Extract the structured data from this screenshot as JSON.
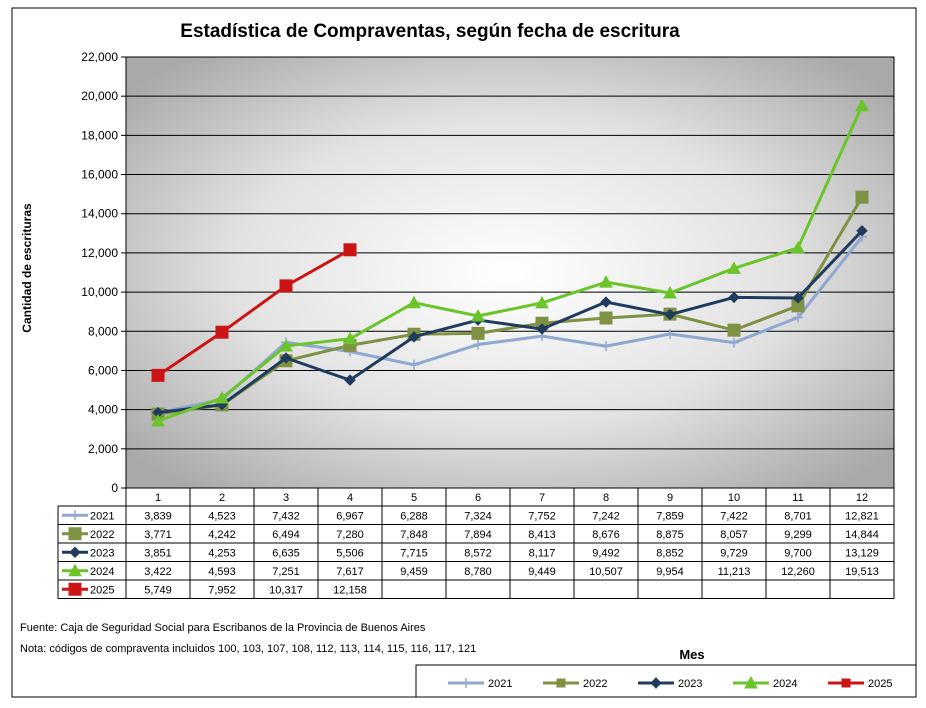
{
  "chart_data": {
    "type": "line",
    "title": "Estadística de Compraventas, según fecha de escritura",
    "xlabel": "Mes",
    "ylabel": "Cantidad de escrituras",
    "categories": [
      "1",
      "2",
      "3",
      "4",
      "5",
      "6",
      "7",
      "8",
      "9",
      "10",
      "11",
      "12"
    ],
    "ylim": [
      0,
      22000
    ],
    "yticks": [
      0,
      2000,
      4000,
      6000,
      8000,
      10000,
      12000,
      14000,
      16000,
      18000,
      20000,
      22000
    ],
    "ytick_labels": [
      "0",
      "2,000",
      "4,000",
      "6,000",
      "8,000",
      "10,000",
      "12,000",
      "14,000",
      "16,000",
      "18,000",
      "20,000",
      "22,000"
    ],
    "grid": true,
    "legend_position": "bottom-right",
    "series": [
      {
        "name": "2021",
        "color": "#8fa8d0",
        "marker": "cross",
        "values": [
          3839,
          4523,
          7432,
          6967,
          6288,
          7324,
          7752,
          7242,
          7859,
          7422,
          8701,
          12821
        ],
        "labels": [
          "3,839",
          "4,523",
          "7,432",
          "6,967",
          "6,288",
          "7,324",
          "7,752",
          "7,242",
          "7,859",
          "7,422",
          "8,701",
          "12,821"
        ]
      },
      {
        "name": "2022",
        "color": "#7f9244",
        "marker": "square",
        "values": [
          3771,
          4242,
          6494,
          7280,
          7848,
          7894,
          8413,
          8676,
          8875,
          8057,
          9299,
          14844
        ],
        "labels": [
          "3,771",
          "4,242",
          "6,494",
          "7,280",
          "7,848",
          "7,894",
          "8,413",
          "8,676",
          "8,875",
          "8,057",
          "9,299",
          "14,844"
        ]
      },
      {
        "name": "2023",
        "color": "#1f3b5e",
        "marker": "diamond",
        "values": [
          3851,
          4253,
          6635,
          5506,
          7715,
          8572,
          8117,
          9492,
          8852,
          9729,
          9700,
          13129
        ],
        "labels": [
          "3,851",
          "4,253",
          "6,635",
          "5,506",
          "7,715",
          "8,572",
          "8,117",
          "9,492",
          "8,852",
          "9,729",
          "9,700",
          "13,129"
        ]
      },
      {
        "name": "2024",
        "color": "#6ac42a",
        "marker": "triangle",
        "values": [
          3422,
          4593,
          7251,
          7617,
          9459,
          8780,
          9449,
          10507,
          9954,
          11213,
          12260,
          19513
        ],
        "labels": [
          "3,422",
          "4,593",
          "7,251",
          "7,617",
          "9,459",
          "8,780",
          "9,449",
          "10,507",
          "9,954",
          "11,213",
          "12,260",
          "19,513"
        ]
      },
      {
        "name": "2025",
        "color": "#cc1414",
        "marker": "square",
        "values": [
          5749,
          7952,
          10317,
          12158,
          null,
          null,
          null,
          null,
          null,
          null,
          null,
          null
        ],
        "labels": [
          "5,749",
          "7,952",
          "10,317",
          "12,158",
          "",
          "",
          "",
          "",
          "",
          "",
          "",
          ""
        ]
      }
    ]
  },
  "notes": {
    "source": "Fuente: Caja de Seguridad Social para Escribanos de la Provincia de Buenos Aires",
    "note": "Nota: códigos de compraventa incluidos 100, 103, 107, 108, 112, 113, 114, 115, 116, 117, 121"
  }
}
